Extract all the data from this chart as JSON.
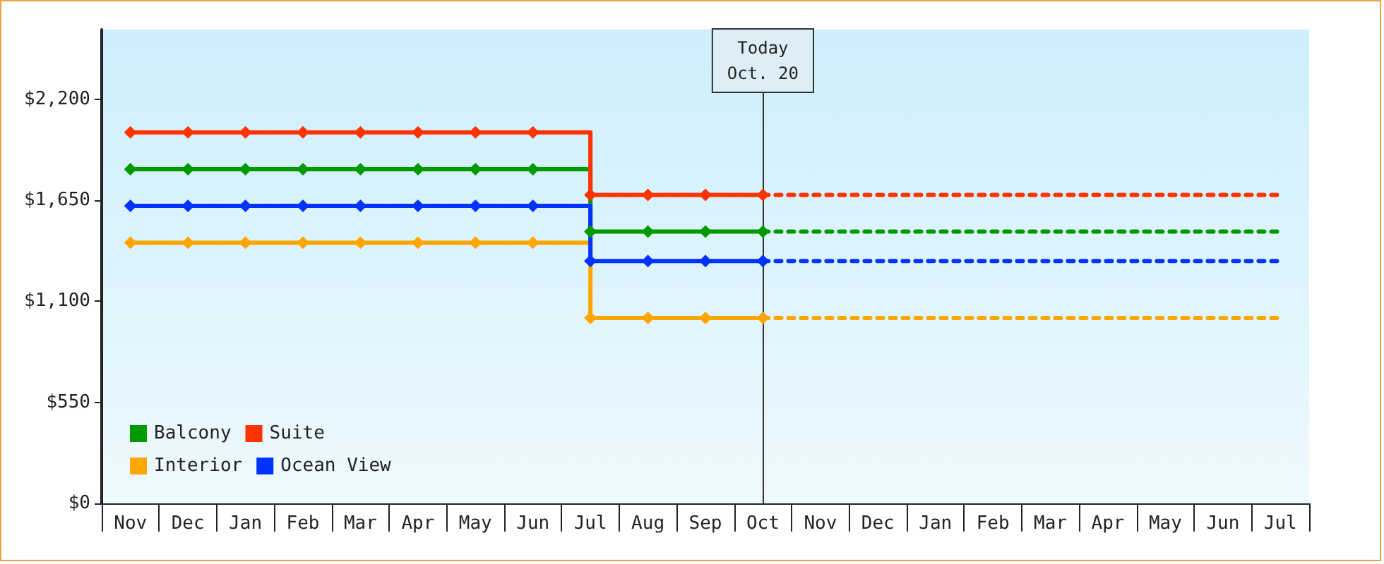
{
  "chart_data": {
    "type": "step",
    "categories": [
      "Nov",
      "Dec",
      "Jan",
      "Feb",
      "Mar",
      "Apr",
      "May",
      "Jun",
      "Jul",
      "Aug",
      "Sep",
      "Oct",
      "Nov",
      "Dec",
      "Jan",
      "Feb",
      "Mar",
      "Apr",
      "May",
      "Jun",
      "Jul"
    ],
    "ylim": [
      0,
      2580
    ],
    "yticks": [
      {
        "value": 0,
        "label": "$0"
      },
      {
        "value": 550,
        "label": "$550"
      },
      {
        "value": 1100,
        "label": "$1,100"
      },
      {
        "value": 1650,
        "label": "$1,650"
      },
      {
        "value": 2200,
        "label": "$2,200"
      }
    ],
    "legend": "bottom left",
    "grid": false,
    "ref_lines": [
      {
        "axis": "x",
        "value": "Oct",
        "label": "Today\nOct. 20",
        "color": "#333333"
      }
    ],
    "series": [
      {
        "name": "Balcony",
        "color": "#009900",
        "marker": "diamond",
        "line_style": "solid",
        "values": [
          1820,
          1820,
          1820,
          1820,
          1820,
          1820,
          1820,
          1820,
          1480,
          1480,
          1480,
          1480,
          null,
          null,
          null,
          null,
          null,
          null,
          null,
          null,
          null
        ]
      },
      {
        "name": "Suite",
        "color": "#ff3300",
        "marker": "diamond",
        "line_style": "solid",
        "values": [
          2020,
          2020,
          2020,
          2020,
          2020,
          2020,
          2020,
          2020,
          1680,
          1680,
          1680,
          1680,
          null,
          null,
          null,
          null,
          null,
          null,
          null,
          null,
          null
        ]
      },
      {
        "name": "Interior",
        "color": "#ffa500",
        "marker": "diamond",
        "line_style": "solid",
        "values": [
          1420,
          1420,
          1420,
          1420,
          1420,
          1420,
          1420,
          1420,
          1010,
          1010,
          1010,
          1010,
          null,
          null,
          null,
          null,
          null,
          null,
          null,
          null,
          null
        ]
      },
      {
        "name": "Ocean View",
        "color": "#0033ff",
        "marker": "diamond",
        "line_style": "solid",
        "values": [
          1620,
          1620,
          1620,
          1620,
          1620,
          1620,
          1620,
          1620,
          1320,
          1320,
          1320,
          1320,
          null,
          null,
          null,
          null,
          null,
          null,
          null,
          null,
          null
        ]
      },
      {
        "color": "#009900",
        "marker": "none",
        "line_style": "dashed",
        "values": [
          null,
          null,
          null,
          null,
          null,
          null,
          null,
          null,
          null,
          null,
          null,
          1480,
          1480,
          1480,
          1480,
          1480,
          1480,
          1480,
          1480,
          1480,
          1480
        ]
      },
      {
        "color": "#ff3300",
        "marker": "none",
        "line_style": "dashed",
        "values": [
          null,
          null,
          null,
          null,
          null,
          null,
          null,
          null,
          null,
          null,
          null,
          1680,
          1680,
          1680,
          1680,
          1680,
          1680,
          1680,
          1680,
          1680,
          1680
        ]
      },
      {
        "color": "#ffa500",
        "marker": "none",
        "line_style": "dashed",
        "values": [
          null,
          null,
          null,
          null,
          null,
          null,
          null,
          null,
          null,
          null,
          null,
          1010,
          1010,
          1010,
          1010,
          1010,
          1010,
          1010,
          1010,
          1010,
          1010
        ]
      },
      {
        "color": "#0033ff",
        "marker": "none",
        "line_style": "dashed",
        "values": [
          null,
          null,
          null,
          null,
          null,
          null,
          null,
          null,
          null,
          null,
          null,
          1320,
          1320,
          1320,
          1320,
          1320,
          1320,
          1320,
          1320,
          1320,
          1320
        ]
      }
    ]
  }
}
